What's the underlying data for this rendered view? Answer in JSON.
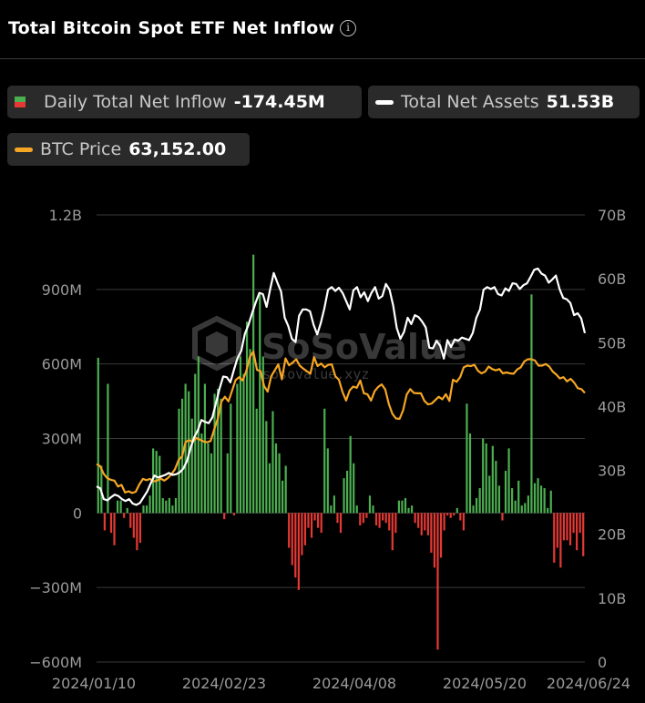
{
  "header": {
    "title": "Total Bitcoin Spot ETF Net Inflow",
    "info_icon": "info-icon"
  },
  "legend": {
    "inflow": {
      "label": "Daily Total Net Inflow",
      "value": "-174.45M"
    },
    "assets": {
      "label": "Total Net Assets",
      "value": "51.53B",
      "color": "#ffffff"
    },
    "price": {
      "label": "BTC Price",
      "value": "63,152.00",
      "color": "#f5a623"
    }
  },
  "watermark": {
    "brand": "SoSoValue",
    "url": "sosovalue.xyz"
  },
  "chart_data": {
    "type": "bar",
    "left_axis": {
      "ticks": [
        1200,
        900,
        600,
        300,
        0,
        -300,
        -600
      ],
      "tick_labels": [
        "1.2B",
        "900M",
        "600M",
        "300M",
        "0",
        "−300M",
        "−600M"
      ],
      "range": [
        -600,
        1200
      ],
      "unit": "M"
    },
    "right_axis": {
      "ticks": [
        70,
        60,
        50,
        40,
        30,
        20,
        10,
        0
      ],
      "tick_labels": [
        "70B",
        "60B",
        "50B",
        "40B",
        "30B",
        "20B",
        "10B",
        "0"
      ],
      "range": [
        0,
        70
      ],
      "unit": "B"
    },
    "x_tick_labels": [
      "2024/01/10",
      "2024/02/23",
      "2024/04/08",
      "2024/05/20",
      "2024/06/24"
    ],
    "grid": true,
    "colors": {
      "positive": "#4caf50",
      "negative": "#e53935",
      "assets": "#ffffff",
      "price": "#f5a623"
    },
    "series": [
      {
        "name": "Daily Total Net Inflow",
        "type": "bar",
        "values": [
          625,
          190,
          -70,
          520,
          -80,
          -130,
          50,
          50,
          -20,
          20,
          -60,
          -100,
          -150,
          -120,
          30,
          30,
          70,
          260,
          250,
          230,
          60,
          50,
          60,
          30,
          60,
          420,
          460,
          520,
          490,
          380,
          560,
          630,
          320,
          520,
          280,
          240,
          480,
          500,
          460,
          -25,
          240,
          440,
          -10,
          520,
          630,
          560,
          770,
          660,
          1040,
          420,
          880,
          630,
          370,
          200,
          410,
          280,
          240,
          130,
          190,
          -140,
          -210,
          -260,
          -310,
          -170,
          -130,
          -60,
          -100,
          -30,
          -60,
          -80,
          420,
          260,
          30,
          70,
          -40,
          -80,
          140,
          170,
          310,
          200,
          30,
          -50,
          -40,
          -20,
          70,
          30,
          -50,
          -60,
          -30,
          -40,
          -70,
          -150,
          -80,
          50,
          50,
          60,
          20,
          30,
          -40,
          -60,
          -90,
          -70,
          -90,
          -160,
          -220,
          -550,
          -180,
          -70,
          -10,
          -20,
          -10,
          20,
          -30,
          -70,
          440,
          320,
          30,
          60,
          100,
          300,
          280,
          150,
          270,
          210,
          110,
          -30,
          170,
          260,
          100,
          50,
          130,
          30,
          40,
          70,
          880,
          120,
          140,
          110,
          100,
          20,
          90,
          -200,
          -140,
          -220,
          -110,
          -110,
          -130,
          -80,
          -150,
          -80,
          -174
        ],
        "note": "Values approximated from chart in millions of USD, one bar per trading day 2024/01/11 - 2024/06/24"
      },
      {
        "name": "Total Net Assets",
        "type": "line",
        "values": [
          27.5,
          27.2,
          25.5,
          25.3,
          25.8,
          26.2,
          26,
          25.5,
          25.2,
          25.5,
          24.8,
          24.6,
          24.9,
          25.8,
          26.7,
          28,
          29.2,
          28.9,
          29.1,
          29.3,
          29.6,
          29.3,
          29.4,
          29.7,
          30.3,
          31.5,
          33.5,
          35.2,
          36.3,
          37.9,
          37.6,
          37.4,
          38.3,
          40.5,
          42.8,
          44.7,
          44.6,
          43.8,
          45.8,
          47.6,
          48.7,
          51.4,
          52.8,
          54.6,
          56.3,
          57.8,
          57.6,
          55.6,
          58.4,
          60.9,
          59.4,
          58,
          53.9,
          52.6,
          50.6,
          50.1,
          54.2,
          55.2,
          55.2,
          54.9,
          52.8,
          51.3,
          53.1,
          55.4,
          58.3,
          58.7,
          58.1,
          58.6,
          57.8,
          56.5,
          55.2,
          58.2,
          58.7,
          57.1,
          57.9,
          56.5,
          57.8,
          58.7,
          56.9,
          57.3,
          59.2,
          58.3,
          55.8,
          52.3,
          50.6,
          51.7,
          53.9,
          52.9,
          54.3,
          54,
          53.3,
          52.4,
          49.2,
          49.1,
          50.3,
          49.5,
          47.5,
          50.4,
          49.3,
          50.5,
          50.3,
          50.8,
          50.6,
          50.4,
          51.5,
          53.9,
          55.2,
          58.3,
          58.7,
          58.4,
          58.7,
          57.6,
          57.4,
          58.5,
          58.1,
          59.3,
          59.2,
          58.4,
          59,
          59.3,
          60.3,
          61.4,
          61.6,
          60.8,
          60.5,
          59.4,
          59.9,
          60.5,
          58.4,
          57,
          56.8,
          56.2,
          54.3,
          54.6,
          53.8,
          51.5
        ]
      },
      {
        "name": "BTC Price",
        "type": "line",
        "values": [
          46500,
          46000,
          44200,
          43200,
          42800,
          42600,
          41200,
          41600,
          39800,
          40100,
          39700,
          40000,
          41700,
          43000,
          42700,
          43000,
          42400,
          42600,
          43100,
          42600,
          43200,
          44100,
          45300,
          47400,
          48300,
          51700,
          52100,
          51700,
          52600,
          52200,
          51800,
          51600,
          51900,
          54600,
          57100,
          61100,
          62300,
          61200,
          63700,
          66200,
          66900,
          66100,
          68300,
          71600,
          72900,
          68600,
          68300,
          64800,
          63500,
          67100,
          68500,
          69900,
          66400,
          71300,
          69700,
          70300,
          71100,
          69600,
          68900,
          68300,
          67700,
          71600,
          69500,
          70100,
          69200,
          69800,
          69900,
          67100,
          66300,
          63400,
          61400,
          63800,
          64700,
          64400,
          66100,
          63100,
          62900,
          61400,
          63600,
          64600,
          65200,
          64000,
          60600,
          58300,
          57200,
          57100,
          59100,
          62800,
          64100,
          63200,
          63100,
          63100,
          61300,
          60500,
          60700,
          61500,
          62300,
          61700,
          62900,
          61300,
          66300,
          65800,
          66900,
          69200,
          69600,
          69500,
          69800,
          68400,
          67800,
          68200,
          69400,
          68800,
          68500,
          68800,
          67800,
          68000,
          67800,
          67700,
          68700,
          69200,
          70600,
          71100,
          71100,
          70800,
          69600,
          69600,
          70000,
          69400,
          68200,
          67500,
          66600,
          66900,
          65900,
          66500,
          65600,
          64300,
          64100,
          63200
        ]
      }
    ]
  }
}
